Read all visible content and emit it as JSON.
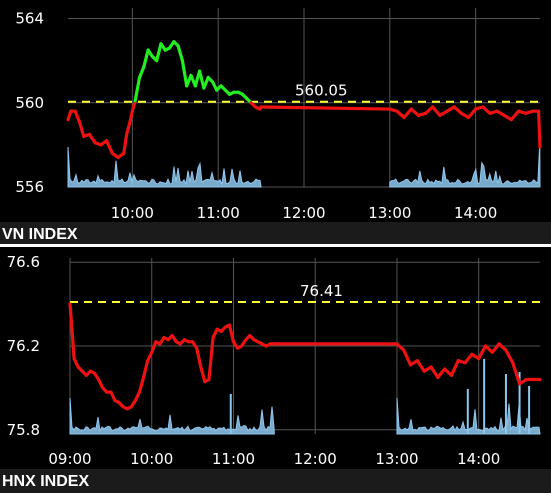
{
  "chart_data": [
    {
      "type": "line",
      "title": "VN INDEX",
      "reference": {
        "value": 560.05,
        "label": "560.05",
        "color": "#ffff33"
      },
      "ylim": [
        556,
        564.5
      ],
      "yticks": [
        556,
        560,
        564
      ],
      "yticklabels": [
        "556",
        "560",
        "564"
      ],
      "xlim": [
        "09:15",
        "14:45"
      ],
      "xticks": [
        "10:00",
        "11:00",
        "12:00",
        "13:00",
        "14:00"
      ],
      "colors": {
        "above": "#22ee22",
        "below": "#ee1111",
        "volume": "#8ec7ee",
        "grid": "#555555"
      },
      "series": [
        {
          "values_x": [
            "09:15",
            "09:17",
            "09:20",
            "09:23",
            "09:26",
            "09:30",
            "09:34",
            "09:38",
            "09:42",
            "09:46",
            "09:50",
            "09:54",
            "09:56",
            "09:58",
            "10:00",
            "10:02",
            "10:05",
            "10:08",
            "10:11",
            "10:14",
            "10:17",
            "10:20",
            "10:23",
            "10:26",
            "10:29",
            "10:32",
            "10:35",
            "10:38",
            "10:41",
            "10:44",
            "10:47",
            "10:50",
            "10:53",
            "10:56",
            "10:59",
            "11:02",
            "11:05",
            "11:08",
            "11:11",
            "11:14",
            "11:17",
            "11:20",
            "11:23",
            "11:26",
            "11:29",
            "11:30",
            "13:00",
            "13:05",
            "13:10",
            "13:15",
            "13:20",
            "13:25",
            "13:30",
            "13:35",
            "13:40",
            "13:45",
            "13:50",
            "13:55",
            "14:00",
            "14:05",
            "14:10",
            "14:15",
            "14:20",
            "14:25",
            "14:30",
            "14:35",
            "14:40",
            "14:44",
            "14:45"
          ],
          "values_y": [
            559.2,
            559.6,
            559.6,
            559.1,
            558.4,
            558.5,
            558.1,
            558.0,
            558.2,
            557.6,
            557.4,
            557.6,
            558.5,
            559.0,
            559.6,
            560.1,
            561.2,
            561.7,
            562.5,
            562.2,
            562.0,
            562.8,
            562.5,
            562.6,
            562.9,
            562.7,
            562.0,
            560.8,
            561.3,
            560.8,
            561.5,
            560.7,
            561.2,
            561.0,
            560.6,
            560.8,
            560.6,
            560.4,
            560.5,
            560.5,
            560.4,
            560.2,
            560.0,
            559.8,
            559.7,
            559.8,
            559.7,
            559.6,
            559.3,
            559.7,
            559.4,
            559.5,
            559.8,
            559.4,
            559.6,
            559.8,
            559.5,
            559.3,
            559.7,
            559.8,
            559.5,
            559.6,
            559.4,
            559.2,
            559.6,
            559.5,
            559.6,
            559.6,
            557.9
          ]
        }
      ],
      "volume": {
        "segments": [
          [
            "09:15",
            "11:30"
          ],
          [
            "13:00",
            "14:45"
          ]
        ]
      }
    },
    {
      "type": "line",
      "title": "HNX INDEX",
      "reference": {
        "value": 76.41,
        "label": "76.41",
        "color": "#ffff33"
      },
      "ylim": [
        75.78,
        76.62
      ],
      "yticks": [
        75.8,
        76.2,
        76.6
      ],
      "yticklabels": [
        "75.8",
        "76.2",
        "76.6"
      ],
      "xlim": [
        "09:00",
        "14:45"
      ],
      "xticks": [
        "09:00",
        "10:00",
        "11:00",
        "12:00",
        "13:00",
        "14:00"
      ],
      "colors": {
        "above": "#22ee22",
        "below": "#ee1111",
        "volume": "#8ec7ee",
        "grid": "#555555"
      },
      "series": [
        {
          "values_x": [
            "09:00",
            "09:01",
            "09:03",
            "09:06",
            "09:09",
            "09:12",
            "09:15",
            "09:18",
            "09:21",
            "09:24",
            "09:27",
            "09:30",
            "09:33",
            "09:36",
            "09:39",
            "09:42",
            "09:45",
            "09:48",
            "09:51",
            "09:54",
            "09:57",
            "10:00",
            "10:03",
            "10:06",
            "10:09",
            "10:12",
            "10:15",
            "10:18",
            "10:21",
            "10:24",
            "10:27",
            "10:30",
            "10:33",
            "10:36",
            "10:39",
            "10:42",
            "10:45",
            "10:48",
            "10:51",
            "10:54",
            "10:57",
            "11:00",
            "11:03",
            "11:06",
            "11:09",
            "11:12",
            "11:15",
            "11:18",
            "11:21",
            "11:24",
            "11:27",
            "11:30",
            "13:00",
            "13:05",
            "13:10",
            "13:15",
            "13:20",
            "13:25",
            "13:30",
            "13:35",
            "13:40",
            "13:45",
            "13:50",
            "13:55",
            "14:00",
            "14:05",
            "14:10",
            "14:15",
            "14:20",
            "14:25",
            "14:30",
            "14:35",
            "14:40",
            "14:45"
          ],
          "values_y": [
            76.4,
            76.32,
            76.14,
            76.1,
            76.08,
            76.06,
            76.08,
            76.07,
            76.04,
            76.0,
            75.98,
            75.98,
            75.94,
            75.93,
            75.91,
            75.9,
            75.91,
            75.94,
            75.98,
            76.05,
            76.13,
            76.17,
            76.22,
            76.21,
            76.24,
            76.23,
            76.25,
            76.22,
            76.21,
            76.23,
            76.22,
            76.22,
            76.19,
            76.1,
            76.03,
            76.04,
            76.24,
            76.28,
            76.27,
            76.29,
            76.3,
            76.22,
            76.19,
            76.2,
            76.23,
            76.25,
            76.23,
            76.22,
            76.21,
            76.2,
            76.21,
            76.21,
            76.21,
            76.18,
            76.11,
            76.13,
            76.08,
            76.1,
            76.05,
            76.09,
            76.06,
            76.13,
            76.12,
            76.16,
            76.14,
            76.2,
            76.17,
            76.21,
            76.18,
            76.12,
            76.02,
            76.04,
            76.04,
            76.04
          ]
        }
      ],
      "volume": {
        "segments": [
          [
            "09:00",
            "11:30"
          ],
          [
            "13:00",
            "14:45"
          ]
        ]
      }
    }
  ]
}
